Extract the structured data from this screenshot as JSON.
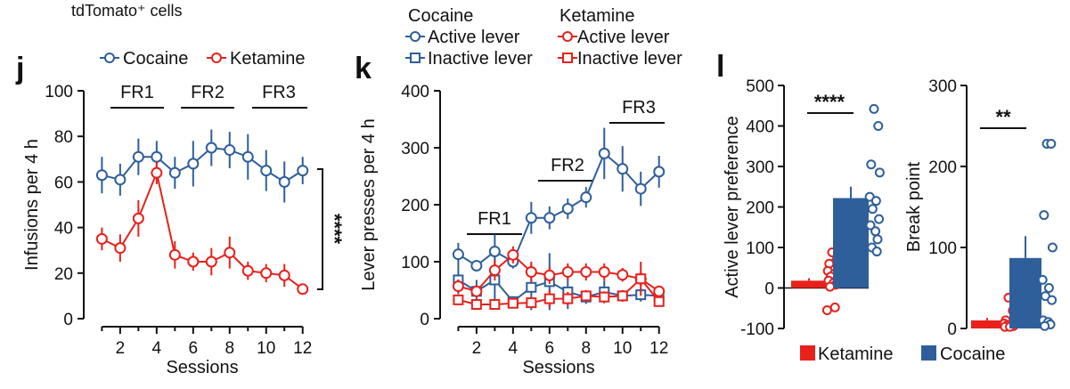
{
  "caption": "tdTomato⁺ cells",
  "colors": {
    "cocaine": "#2e5f9a",
    "ketamine": "#e8211c"
  },
  "panel_j": {
    "label": "j",
    "legend": {
      "cocaine": "Cocaine",
      "ketamine": "Ketamine"
    },
    "phases": [
      "FR1",
      "FR2",
      "FR3"
    ],
    "significance": "****"
  },
  "panel_k": {
    "label": "k",
    "legend": {
      "cocaine_title": "Cocaine",
      "ketamine_title": "Ketamine",
      "active": "Active lever",
      "inactive": "Inactive lever"
    },
    "phases": [
      "FR1",
      "FR2",
      "FR3"
    ]
  },
  "panel_l": {
    "label": "l",
    "legend": {
      "ketamine": "Ketamine",
      "cocaine": "Cocaine"
    },
    "significance_pref": "****",
    "significance_bp": "**"
  },
  "chart_data": [
    {
      "id": "j",
      "type": "line",
      "xlabel": "Sessions",
      "ylabel": "Infusions per 4 h",
      "xlim": [
        0.2,
        12.6
      ],
      "ylim": [
        0,
        100
      ],
      "xticks": [
        2,
        4,
        6,
        8,
        10,
        12
      ],
      "yticks": [
        0,
        20,
        40,
        60,
        80,
        100
      ],
      "x": [
        1,
        2,
        3,
        4,
        5,
        6,
        7,
        8,
        9,
        10,
        11,
        12
      ],
      "series": [
        {
          "name": "Cocaine",
          "color": "#2e5f9a",
          "values": [
            63,
            61,
            71,
            71,
            64,
            68,
            75,
            74,
            71,
            65,
            60,
            65
          ],
          "err": [
            8,
            7,
            8,
            7,
            7,
            10,
            8,
            8,
            10,
            9,
            9,
            6
          ]
        },
        {
          "name": "Ketamine",
          "color": "#e8211c",
          "values": [
            35,
            31,
            44,
            64,
            28,
            25,
            25,
            29,
            21,
            20,
            19,
            13
          ],
          "err": [
            5,
            6,
            8,
            5,
            6,
            4,
            6,
            7,
            4,
            4,
            5,
            2
          ]
        }
      ]
    },
    {
      "id": "k",
      "type": "line",
      "xlabel": "Sessions",
      "ylabel": "Lever presses per 4 h",
      "xlim": [
        0.2,
        12.6
      ],
      "ylim": [
        0,
        400
      ],
      "xticks": [
        2,
        4,
        6,
        8,
        10,
        12
      ],
      "yticks": [
        0,
        100,
        200,
        300,
        400
      ],
      "x": [
        1,
        2,
        3,
        4,
        5,
        6,
        7,
        8,
        9,
        10,
        11,
        12
      ],
      "series": [
        {
          "name": "Cocaine Active lever",
          "color": "#2e5f9a",
          "marker": "circle",
          "values": [
            113,
            93,
            118,
            100,
            177,
            177,
            193,
            213,
            290,
            263,
            228,
            258
          ],
          "err": [
            20,
            8,
            30,
            12,
            28,
            20,
            18,
            18,
            45,
            40,
            30,
            28
          ]
        },
        {
          "name": "Cocaine Inactive lever",
          "color": "#2e5f9a",
          "marker": "square",
          "values": [
            68,
            48,
            68,
            30,
            55,
            65,
            47,
            38,
            47,
            40,
            42,
            40
          ],
          "err": [
            25,
            20,
            40,
            8,
            40,
            50,
            30,
            12,
            20,
            10,
            12,
            10
          ]
        },
        {
          "name": "Ketamine Active lever",
          "color": "#e8211c",
          "marker": "circle",
          "values": [
            57,
            48,
            85,
            112,
            82,
            76,
            82,
            82,
            82,
            77,
            70,
            48
          ],
          "err": [
            12,
            10,
            18,
            15,
            18,
            15,
            15,
            15,
            15,
            12,
            12,
            8
          ]
        },
        {
          "name": "Ketamine Inactive lever",
          "color": "#e8211c",
          "marker": "square",
          "values": [
            33,
            25,
            25,
            27,
            28,
            35,
            35,
            40,
            38,
            40,
            70,
            30
          ],
          "err": [
            8,
            6,
            6,
            6,
            6,
            15,
            12,
            10,
            10,
            10,
            30,
            8
          ]
        }
      ]
    },
    {
      "id": "l-preference",
      "type": "bar",
      "ylabel": "Active lever preference",
      "ylim": [
        -100,
        500
      ],
      "yticks": [
        -100,
        0,
        100,
        200,
        300,
        400,
        500
      ],
      "categories": [
        "Ketamine",
        "Cocaine"
      ],
      "values": [
        18,
        222
      ],
      "err": [
        6,
        28
      ],
      "colors": [
        "#e8211c",
        "#2e5f9a"
      ],
      "points": [
        [
          88,
          68,
          60,
          52,
          42,
          35,
          28,
          22,
          18,
          12,
          8,
          3,
          -48,
          -55
        ],
        [
          442,
          400,
          305,
          285,
          225,
          215,
          195,
          170,
          155,
          140,
          120,
          100,
          90
        ]
      ]
    },
    {
      "id": "l-breakpoint",
      "type": "bar",
      "ylabel": "Break point",
      "ylim": [
        0,
        300
      ],
      "yticks": [
        0,
        100,
        200,
        300
      ],
      "categories": [
        "Ketamine",
        "Cocaine"
      ],
      "values": [
        10,
        87
      ],
      "err": [
        3,
        27
      ],
      "colors": [
        "#e8211c",
        "#2e5f9a"
      ],
      "points": [
        [
          38,
          22,
          10,
          8,
          6,
          5,
          4,
          3,
          2,
          2
        ],
        [
          228,
          228,
          140,
          100,
          60,
          50,
          40,
          35,
          10,
          8,
          5,
          3
        ]
      ]
    }
  ]
}
